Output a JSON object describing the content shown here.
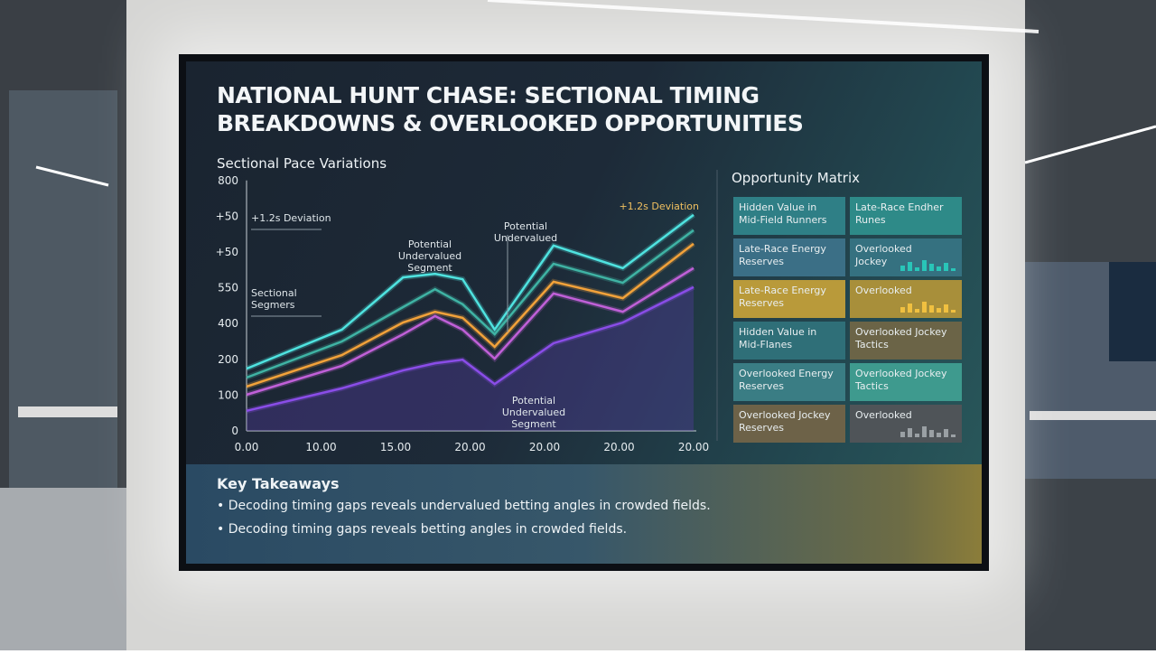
{
  "title": "NATIONAL HUNT CHASE: SECTIONAL TIMING BREAKDOWNS & OVERLOOKED OPPORTUNITIES",
  "chart": {
    "title": "Sectional Pace Variations",
    "y_labels": [
      "0",
      "100",
      "200",
      "400",
      "550",
      "+50",
      "+50",
      "800"
    ],
    "x_labels": [
      "0.00",
      "10.00",
      "15.00",
      "20.00",
      "20.00",
      "20.00",
      "20.00"
    ],
    "x": [
      0,
      1.28,
      2.1,
      2.53,
      2.9,
      3.33,
      4.12,
      5.05,
      6.0
    ],
    "series": [
      {
        "color": "#4fe3e0",
        "values": [
          1.74,
          2.83,
          4.29,
          4.39,
          4.24,
          2.83,
          5.18,
          4.55,
          6.04
        ]
      },
      {
        "color": "#3fb3a4",
        "values": [
          1.49,
          2.5,
          3.46,
          3.96,
          3.54,
          2.7,
          4.67,
          4.14,
          5.61
        ]
      },
      {
        "color": "#f2a23a",
        "values": [
          1.24,
          2.12,
          3.03,
          3.33,
          3.16,
          2.35,
          4.17,
          3.71,
          5.23
        ]
      },
      {
        "color": "#c060d8",
        "values": [
          1.01,
          1.82,
          2.7,
          3.21,
          2.83,
          2.02,
          3.84,
          3.33,
          4.55
        ]
      },
      {
        "color": "#8a4de8",
        "values": [
          0.56,
          1.19,
          1.69,
          1.89,
          1.99,
          1.31,
          2.45,
          3.03,
          4.02
        ]
      }
    ],
    "annotations": [
      "+1.2s Deviation",
      "+1.2s Deviation",
      "Potential Undervalued Segment",
      "Potential Undervalued",
      "Sectional Segmers",
      "Potential Undervalued Segment"
    ]
  },
  "matrix": {
    "title": "Opportunity Matrix",
    "tiles": [
      {
        "label": "Hidden Value in Mid-Field Runners",
        "color": "#2f7f86"
      },
      {
        "label": "Late-Race Endher Runes",
        "color": "#2e8a88"
      },
      {
        "label": "Late-Race Energy Reserves",
        "color": "#3b6f86"
      },
      {
        "label": "Overlooked Jockey",
        "color": "#357180"
      },
      {
        "label": "Late-Race Energy Reserves",
        "color": "#b99a3a"
      },
      {
        "label": "Overlooked",
        "color": "#a88f3a"
      },
      {
        "label": "Hidden Value in Mid-Flanes",
        "color": "#2f6f78"
      },
      {
        "label": "Overlooked Jockey Tactics",
        "color": "#6b6447"
      },
      {
        "label": "Overlooked Energy Reserves",
        "color": "#3a7d84"
      },
      {
        "label": "Overlooked Jockey Tactics",
        "color": "#3e9a8e"
      },
      {
        "label": "Overlooked Jockey Reserves",
        "color": "#6d6248"
      },
      {
        "label": "Overlooked",
        "color": "#4f5458"
      }
    ]
  },
  "takeaways": {
    "title": "Key Takeaways",
    "items": [
      "Decoding timing gaps reveals undervalued betting angles in crowded fields.",
      "Decoding timing gaps reveals betting angles in crowded fields."
    ]
  }
}
